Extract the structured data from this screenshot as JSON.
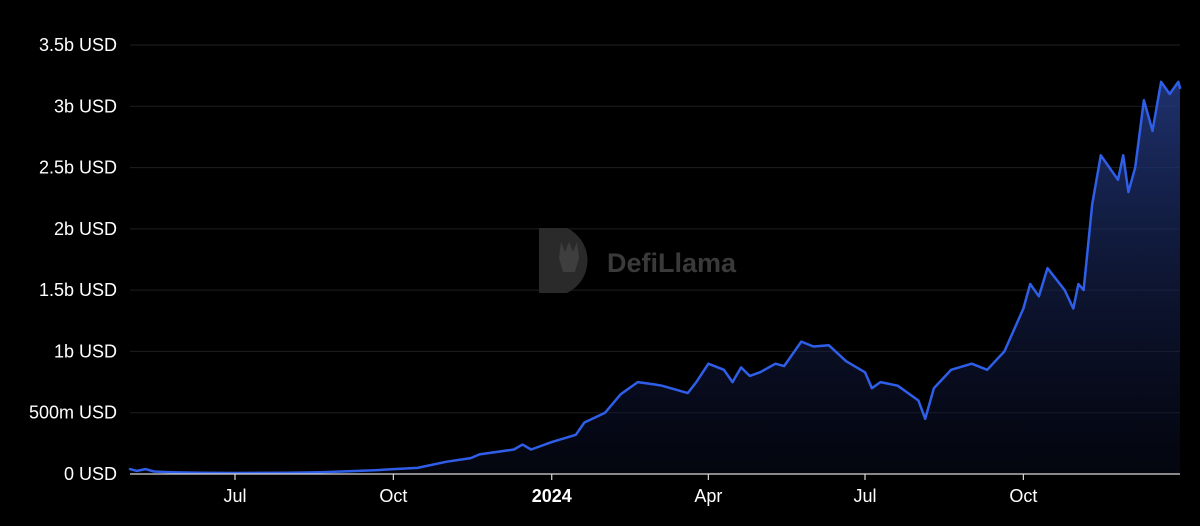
{
  "chart_data": {
    "type": "area",
    "title": "",
    "xlabel": "",
    "ylabel": "",
    "ylim": [
      0,
      3500000000
    ],
    "y_ticks": [
      {
        "value": 0,
        "label": "0 USD"
      },
      {
        "value": 500000000,
        "label": "500m USD"
      },
      {
        "value": 1000000000,
        "label": "1b USD"
      },
      {
        "value": 1500000000,
        "label": "1.5b USD"
      },
      {
        "value": 2000000000,
        "label": "2b USD"
      },
      {
        "value": 2500000000,
        "label": "2.5b USD"
      },
      {
        "value": 3000000000,
        "label": "3b USD"
      },
      {
        "value": 3500000000,
        "label": "3.5b USD"
      }
    ],
    "x_range": [
      "2023-05-01",
      "2024-12-31"
    ],
    "x_ticks": [
      {
        "date": "2023-07-01",
        "label": "Jul",
        "bold": false
      },
      {
        "date": "2023-10-01",
        "label": "Oct",
        "bold": false
      },
      {
        "date": "2024-01-01",
        "label": "2024",
        "bold": true
      },
      {
        "date": "2024-04-01",
        "label": "Apr",
        "bold": false
      },
      {
        "date": "2024-07-01",
        "label": "Jul",
        "bold": false
      },
      {
        "date": "2024-10-01",
        "label": "Oct",
        "bold": false
      }
    ],
    "grid": true,
    "line_color": "#2f5ee8",
    "fill_color_top": "#243a80",
    "fill_color_bottom": "#0a0f2a",
    "series": [
      {
        "points": [
          [
            "2023-05-01",
            40000000
          ],
          [
            "2023-05-05",
            25000000
          ],
          [
            "2023-05-10",
            40000000
          ],
          [
            "2023-05-15",
            20000000
          ],
          [
            "2023-05-25",
            15000000
          ],
          [
            "2023-06-10",
            10000000
          ],
          [
            "2023-07-01",
            8000000
          ],
          [
            "2023-08-01",
            10000000
          ],
          [
            "2023-08-20",
            15000000
          ],
          [
            "2023-09-01",
            20000000
          ],
          [
            "2023-09-20",
            30000000
          ],
          [
            "2023-10-01",
            40000000
          ],
          [
            "2023-10-15",
            50000000
          ],
          [
            "2023-11-01",
            100000000
          ],
          [
            "2023-11-15",
            130000000
          ],
          [
            "2023-11-20",
            160000000
          ],
          [
            "2023-12-10",
            200000000
          ],
          [
            "2023-12-15",
            240000000
          ],
          [
            "2023-12-20",
            200000000
          ],
          [
            "2024-01-01",
            260000000
          ],
          [
            "2024-01-15",
            320000000
          ],
          [
            "2024-01-20",
            420000000
          ],
          [
            "2024-02-01",
            500000000
          ],
          [
            "2024-02-10",
            650000000
          ],
          [
            "2024-02-20",
            750000000
          ],
          [
            "2024-03-01",
            730000000
          ],
          [
            "2024-03-05",
            720000000
          ],
          [
            "2024-03-20",
            660000000
          ],
          [
            "2024-03-25",
            750000000
          ],
          [
            "2024-04-01",
            900000000
          ],
          [
            "2024-04-10",
            850000000
          ],
          [
            "2024-04-15",
            750000000
          ],
          [
            "2024-04-20",
            870000000
          ],
          [
            "2024-04-25",
            800000000
          ],
          [
            "2024-05-01",
            830000000
          ],
          [
            "2024-05-10",
            900000000
          ],
          [
            "2024-05-15",
            880000000
          ],
          [
            "2024-05-25",
            1080000000
          ],
          [
            "2024-06-01",
            1040000000
          ],
          [
            "2024-06-10",
            1050000000
          ],
          [
            "2024-06-20",
            920000000
          ],
          [
            "2024-07-01",
            830000000
          ],
          [
            "2024-07-05",
            700000000
          ],
          [
            "2024-07-10",
            750000000
          ],
          [
            "2024-07-20",
            720000000
          ],
          [
            "2024-08-01",
            600000000
          ],
          [
            "2024-08-05",
            450000000
          ],
          [
            "2024-08-10",
            700000000
          ],
          [
            "2024-08-20",
            850000000
          ],
          [
            "2024-09-01",
            900000000
          ],
          [
            "2024-09-10",
            850000000
          ],
          [
            "2024-09-20",
            1000000000
          ],
          [
            "2024-10-01",
            1350000000
          ],
          [
            "2024-10-05",
            1550000000
          ],
          [
            "2024-10-10",
            1450000000
          ],
          [
            "2024-10-15",
            1680000000
          ],
          [
            "2024-10-25",
            1500000000
          ],
          [
            "2024-10-30",
            1350000000
          ],
          [
            "2024-11-02",
            1550000000
          ],
          [
            "2024-11-05",
            1500000000
          ],
          [
            "2024-11-10",
            2200000000
          ],
          [
            "2024-11-15",
            2600000000
          ],
          [
            "2024-11-25",
            2400000000
          ],
          [
            "2024-11-28",
            2600000000
          ],
          [
            "2024-12-01",
            2300000000
          ],
          [
            "2024-12-05",
            2500000000
          ],
          [
            "2024-12-10",
            3050000000
          ],
          [
            "2024-12-15",
            2800000000
          ],
          [
            "2024-12-20",
            3200000000
          ],
          [
            "2024-12-25",
            3100000000
          ],
          [
            "2024-12-30",
            3200000000
          ],
          [
            "2024-12-31",
            3150000000
          ]
        ]
      }
    ],
    "watermark": {
      "text": "DefiLlama"
    }
  }
}
